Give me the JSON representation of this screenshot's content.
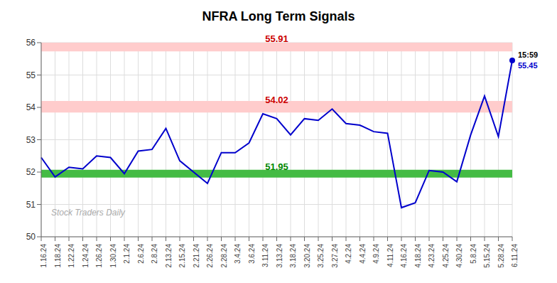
{
  "chart_data": {
    "type": "line",
    "title": "NFRA Long Term Signals",
    "categories": [
      "1.16.24",
      "1.18.24",
      "1.22.24",
      "1.24.24",
      "1.26.24",
      "1.30.24",
      "2.1.24",
      "2.6.24",
      "2.8.24",
      "2.13.24",
      "2.15.24",
      "2.21.24",
      "2.26.24",
      "2.28.24",
      "3.4.24",
      "3.6.24",
      "3.11.24",
      "3.13.24",
      "3.18.24",
      "3.20.24",
      "3.25.24",
      "3.27.24",
      "4.2.24",
      "4.4.24",
      "4.9.24",
      "4.11.24",
      "4.16.24",
      "4.18.24",
      "4.23.24",
      "4.25.24",
      "4.30.24",
      "5.8.24",
      "5.15.24",
      "5.28.24",
      "6.11.24"
    ],
    "values": [
      52.45,
      51.85,
      52.15,
      52.1,
      52.5,
      52.45,
      51.95,
      52.65,
      52.7,
      53.35,
      52.35,
      52.0,
      51.65,
      52.6,
      52.6,
      52.9,
      53.8,
      53.65,
      53.15,
      53.65,
      53.6,
      53.95,
      53.5,
      53.45,
      53.25,
      53.2,
      50.9,
      51.05,
      52.05,
      52.0,
      51.7,
      53.15,
      54.35,
      53.1,
      55.45
    ],
    "color": "#0000cc",
    "ylim": [
      50,
      56
    ],
    "yticks": [
      50,
      51,
      52,
      53,
      54,
      55,
      56
    ],
    "grid": true,
    "bands": [
      {
        "value": 55.91,
        "half_width": 0.18,
        "color": "#ffcccc",
        "label_color": "#cc0000"
      },
      {
        "value": 54.02,
        "half_width": 0.18,
        "color": "#ffcccc",
        "label_color": "#cc0000"
      },
      {
        "value": 51.95,
        "half_width": 0.12,
        "color": "#44bb44",
        "label_color": "#008800"
      }
    ],
    "last_point": {
      "label": "15:59",
      "value": 55.45
    },
    "watermark": "Stock Traders Daily"
  }
}
